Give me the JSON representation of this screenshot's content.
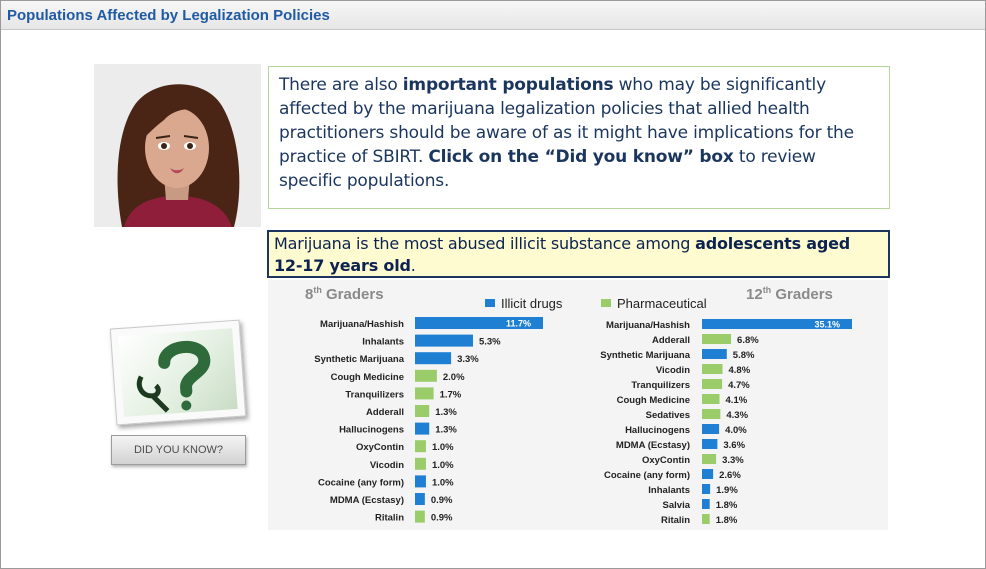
{
  "window": {
    "title": "Populations Affected by Legalization Policies"
  },
  "intro": {
    "t1": "There are also ",
    "b1": "important populations",
    "t2": " who may be significantly affected by the marijuana legalization policies that allied health practitioners should be aware of as it might have implications for the practice of SBIRT. ",
    "b2": "Click on the “Did you know” box",
    "t3": " to review specific populations."
  },
  "fact": {
    "t1": "Marijuana is the most abused illicit substance among ",
    "b1": "adolescents aged 12-17 years old",
    "t2": "."
  },
  "did_you_know": {
    "label": "DID YOU KNOW?"
  },
  "colors": {
    "illicit": "#1f7fd2",
    "pharmaceutical": "#9acd6a",
    "title_blue": "#1f5aa3"
  },
  "chart_data": [
    {
      "type": "bar",
      "title": "8th Graders",
      "legend": [
        {
          "name": "Illicit drugs",
          "kind": "illicit"
        },
        {
          "name": "Pharmaceutical",
          "kind": "pharmaceutical"
        }
      ],
      "categories": [
        "Marijuana/Hashish",
        "Inhalants",
        "Synthetic Marijuana",
        "Cough Medicine",
        "Tranquilizers",
        "Adderall",
        "Hallucinogens",
        "OxyContin",
        "Vicodin",
        "Cocaine (any form)",
        "MDMA (Ecstasy)",
        "Ritalin"
      ],
      "values": [
        11.7,
        5.3,
        3.3,
        2.0,
        1.7,
        1.3,
        1.3,
        1.0,
        1.0,
        1.0,
        0.9,
        0.9
      ],
      "value_labels": [
        "11.7%",
        "5.3%",
        "3.3%",
        "2.0%",
        "1.7%",
        "1.3%",
        "1.3%",
        "1.0%",
        "1.0%",
        "1.0%",
        "0.9%",
        "0.9%"
      ],
      "kinds": [
        "illicit",
        "illicit",
        "illicit",
        "pharmaceutical",
        "pharmaceutical",
        "pharmaceutical",
        "illicit",
        "pharmaceutical",
        "pharmaceutical",
        "illicit",
        "illicit",
        "pharmaceutical"
      ],
      "xlim": [
        0,
        11.7
      ]
    },
    {
      "type": "bar",
      "title": "12th Graders",
      "categories": [
        "Marijuana/Hashish",
        "Adderall",
        "Synthetic Marijuana",
        "Vicodin",
        "Tranquilizers",
        "Cough Medicine",
        "Sedatives",
        "Hallucinogens",
        "MDMA (Ecstasy)",
        "OxyContin",
        "Cocaine (any form)",
        "Inhalants",
        "Salvia",
        "Ritalin"
      ],
      "values": [
        35.1,
        6.8,
        5.8,
        4.8,
        4.7,
        4.1,
        4.3,
        4.0,
        3.6,
        3.3,
        2.6,
        1.9,
        1.8,
        1.8
      ],
      "value_labels": [
        "35.1%",
        "6.8%",
        "5.8%",
        "4.8%",
        "4.7%",
        "4.1%",
        "4.3%",
        "4.0%",
        "3.6%",
        "3.3%",
        "2.6%",
        "1.9%",
        "1.8%",
        "1.8%"
      ],
      "kinds": [
        "illicit",
        "pharmaceutical",
        "illicit",
        "pharmaceutical",
        "pharmaceutical",
        "pharmaceutical",
        "pharmaceutical",
        "illicit",
        "illicit",
        "pharmaceutical",
        "illicit",
        "illicit",
        "illicit",
        "pharmaceutical"
      ],
      "xlim": [
        0,
        35.1
      ]
    }
  ]
}
